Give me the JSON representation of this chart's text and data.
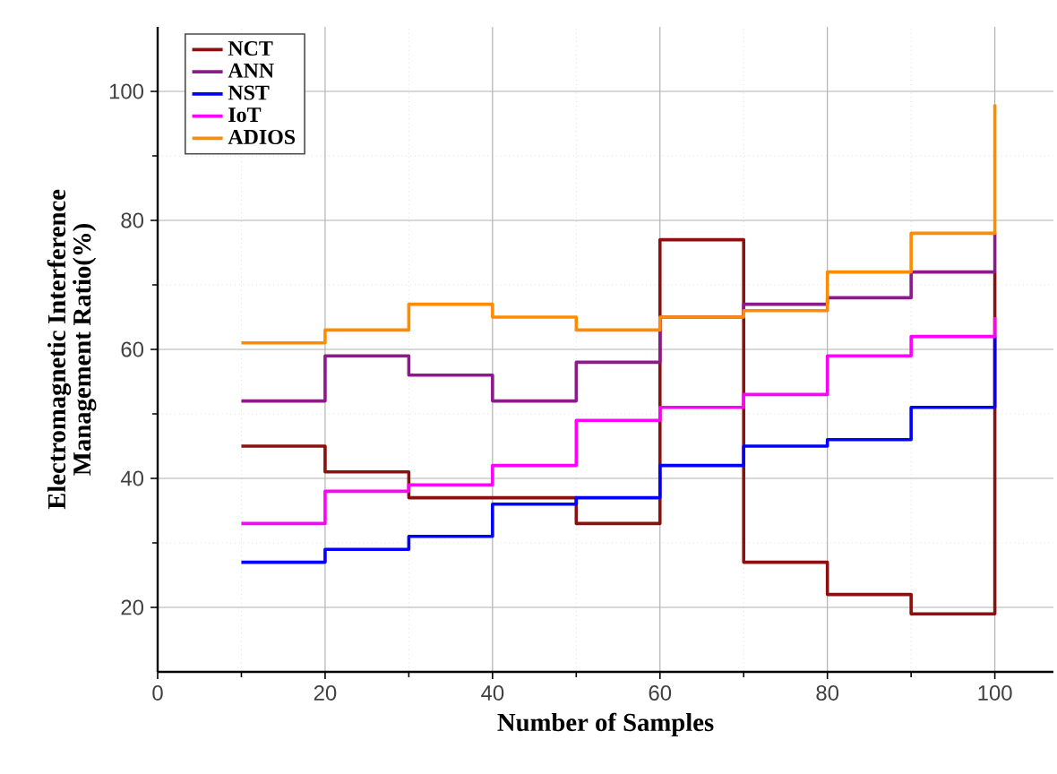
{
  "chart_data": {
    "type": "step",
    "xlabel": "Number of Samples",
    "ylabel": "Electromagnetic Interference Management Ratio(%)",
    "x": [
      10,
      20,
      30,
      40,
      50,
      60,
      70,
      80,
      90,
      100
    ],
    "series": [
      {
        "name": "NCT",
        "color": "#8b1010",
        "values": [
          45,
          41,
          37,
          37,
          33,
          77,
          27,
          22,
          19,
          72
        ]
      },
      {
        "name": "ANN",
        "color": "#8b1a8b",
        "values": [
          52,
          59,
          56,
          52,
          58,
          65,
          67,
          68,
          72,
          78
        ]
      },
      {
        "name": "NST",
        "color": "#0000ff",
        "values": [
          27,
          29,
          31,
          36,
          37,
          42,
          45,
          46,
          51,
          62
        ]
      },
      {
        "name": "IoT",
        "color": "#ff00ff",
        "values": [
          33,
          38,
          39,
          42,
          49,
          51,
          53,
          59,
          62,
          65
        ]
      },
      {
        "name": "ADIOS",
        "color": "#ff8c00",
        "values": [
          61,
          63,
          67,
          65,
          63,
          65,
          66,
          72,
          78,
          98
        ]
      }
    ],
    "xlim": [
      0,
      107
    ],
    "ylim": [
      10,
      110
    ],
    "xticks": [
      0,
      20,
      40,
      60,
      80,
      100
    ],
    "yticks": [
      20,
      40,
      60,
      80,
      100
    ],
    "grid": true,
    "legend": "top left"
  }
}
